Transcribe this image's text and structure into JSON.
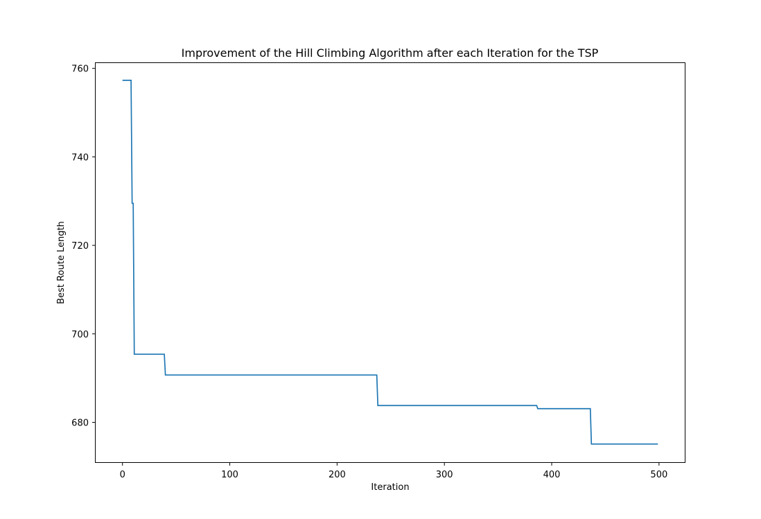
{
  "chart_data": {
    "type": "line",
    "title": "Improvement of the Hill Climbing Algorithm after each Iteration for the TSP",
    "xlabel": "Iteration",
    "ylabel": "Best Route Length",
    "xlim": [
      -25,
      524
    ],
    "ylim": [
      671,
      761.2
    ],
    "xticks": [
      0,
      100,
      200,
      300,
      400,
      500
    ],
    "yticks": [
      680,
      700,
      720,
      740,
      760
    ],
    "grid": false,
    "legend": "none",
    "line_color": "#1f77b4",
    "series": [
      {
        "x": [
          0,
          8,
          9,
          10,
          11,
          39,
          40,
          237,
          238,
          386,
          387,
          436,
          437,
          499
        ],
        "y": [
          757.3,
          757.3,
          729.5,
          729.5,
          695.4,
          695.4,
          690.7,
          690.7,
          683.8,
          683.8,
          683.1,
          683.1,
          675.1,
          675.1
        ]
      }
    ]
  }
}
